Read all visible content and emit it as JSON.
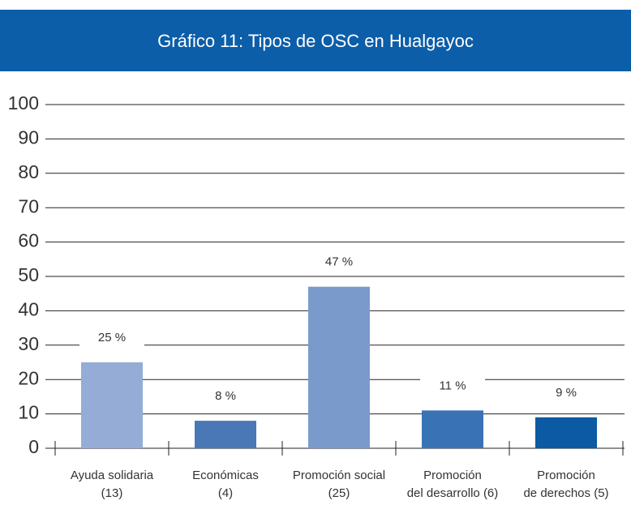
{
  "chart_data": {
    "type": "bar",
    "title": "Gráfico 11: Tipos de OSC en Hualgayoc",
    "categories": [
      [
        "Ayuda solidaria",
        "(13)"
      ],
      [
        "Económicas",
        "(4)"
      ],
      [
        "Promoción social",
        "(25)"
      ],
      [
        "Promoción",
        "del desarrollo (6)"
      ],
      [
        "Promoción",
        "de derechos (5)"
      ]
    ],
    "values": [
      25,
      8,
      47,
      11,
      9
    ],
    "value_labels": [
      "25 %",
      "8 %",
      "47 %",
      "11 %",
      "9 %"
    ],
    "colors": [
      "#94acd6",
      "#4a78b7",
      "#7b9acc",
      "#3a73b5",
      "#0b5aa3"
    ],
    "ylim": [
      0,
      100
    ],
    "yticks": [
      0,
      10,
      20,
      30,
      40,
      50,
      60,
      70,
      80,
      90,
      100
    ],
    "grid": true
  }
}
